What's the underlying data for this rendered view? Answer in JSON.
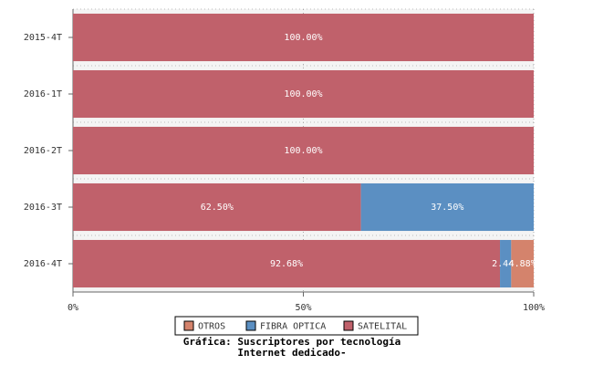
{
  "chart_data": {
    "type": "stacked-barh",
    "title": "Gráfica: Suscriptores por tecnología",
    "subtitle": "Internet dedicado-",
    "categories": [
      "2015-4T",
      "2016-1T",
      "2016-2T",
      "2016-3T",
      "2016-4T"
    ],
    "series": [
      {
        "name": "SATELITAL",
        "color": "#c0616b",
        "values": [
          100,
          100,
          100,
          62.5,
          92.68
        ],
        "value_labels": [
          "100.00%",
          "100.00%",
          "100.00%",
          "62.50%",
          "92.68%"
        ]
      },
      {
        "name": "FIBRA OPTICA",
        "color": "#5b8fc2",
        "values": [
          0,
          0,
          0,
          37.5,
          2.44
        ],
        "value_labels": [
          null,
          null,
          null,
          "37.50%",
          "2.44%"
        ]
      },
      {
        "name": "OTROS",
        "color": "#d4836c",
        "values": [
          0,
          0,
          0,
          0,
          4.88
        ],
        "value_labels": [
          null,
          null,
          null,
          null,
          "4.88%"
        ]
      }
    ],
    "xlim": [
      0,
      100
    ],
    "xticks": [
      {
        "value": 0,
        "label": "0%"
      },
      {
        "value": 50,
        "label": "50%"
      },
      {
        "value": 100,
        "label": "100%"
      }
    ],
    "grid": true
  }
}
